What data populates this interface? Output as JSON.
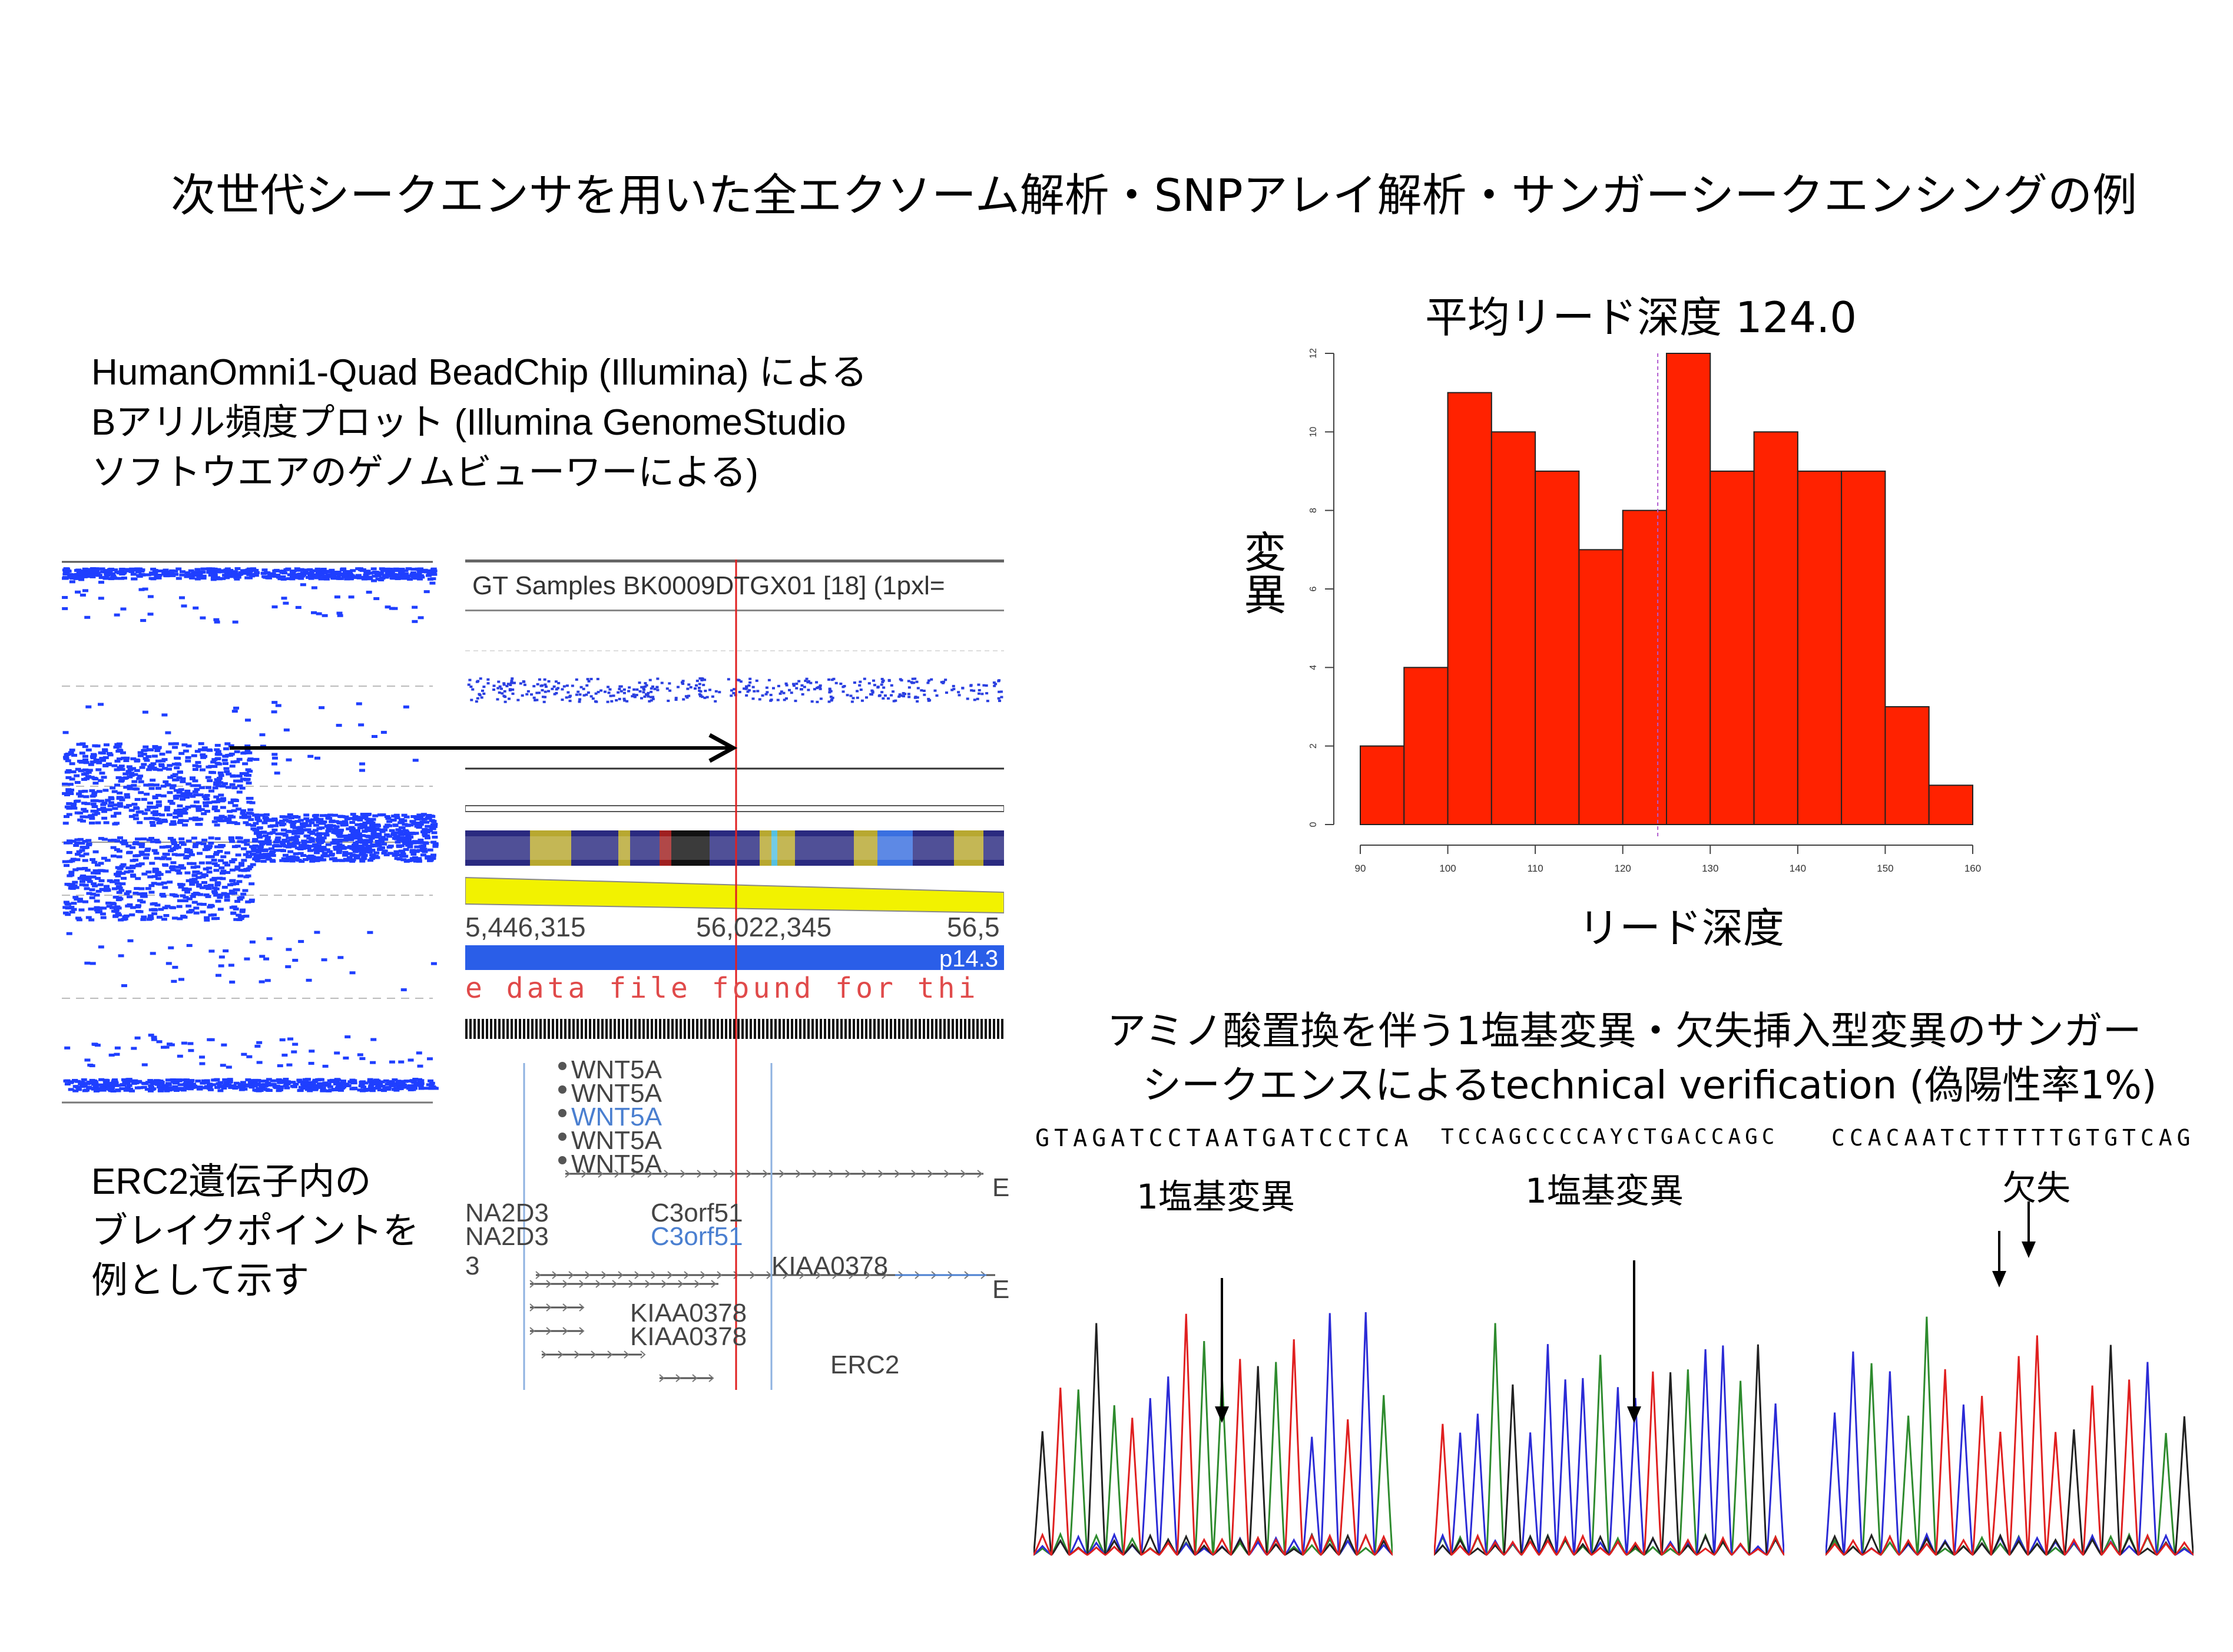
{
  "page_title": "次世代シークエンサを用いた全エクソーム解析・SNPアレイ解析・サンガーシークエンシングの例",
  "left": {
    "caption_lines": [
      "HumanOmni1-Quad BeadChip (Illumina) による",
      "Bアリル頻度プロット (Illumina GenomeStudio",
      "ソフトウエアのゲノムビューワーによる)"
    ],
    "note_lines": [
      "ERC2遺伝子内の",
      "ブレイクポイントを",
      "例として示す"
    ],
    "genome_viewer": {
      "header": "GT Samples BK0009DTGX01 [18] (1pxl=",
      "coord_left": "5,446,315",
      "coord_mid": "56,022,345",
      "coord_right": "56,5",
      "band": "p14.3",
      "no_file_text": "e data file found for thi",
      "genes": [
        {
          "name": "WNT5A",
          "color": "gray"
        },
        {
          "name": "WNT5A",
          "color": "gray"
        },
        {
          "name": "WNT5A",
          "color": "blue"
        },
        {
          "name": "WNT5A",
          "color": "gray"
        },
        {
          "name": "WNT5A",
          "color": "gray"
        },
        {
          "name": "C3orf51",
          "color": "gray"
        },
        {
          "name": "C3orf51",
          "color": "blue"
        },
        {
          "name": "KIAA0378",
          "color": "gray"
        },
        {
          "name": "KIAA0378",
          "color": "gray"
        },
        {
          "name": "KIAA0378",
          "color": "gray"
        },
        {
          "name": "ERC2",
          "color": "gray"
        }
      ],
      "side_labels": [
        "NA2D3",
        "NA2D3",
        "3"
      ],
      "end_letters": [
        "E",
        "E"
      ]
    }
  },
  "chart_data": {
    "type": "bar",
    "title": "平均リード深度 124.0",
    "xlabel": "リード深度",
    "ylabel": "変異",
    "bin_edges": [
      90,
      95,
      100,
      105,
      110,
      115,
      120,
      125,
      130,
      135,
      140,
      145,
      150,
      155,
      160
    ],
    "values": [
      2,
      4,
      11,
      10,
      9,
      7,
      8,
      12,
      9,
      10,
      9,
      9,
      3,
      1
    ],
    "xlim": [
      90,
      160
    ],
    "ylim": [
      0,
      12
    ],
    "x_ticks": [
      90,
      100,
      110,
      120,
      130,
      140,
      150,
      160
    ],
    "y_ticks": [
      0,
      2,
      4,
      6,
      8,
      10,
      12
    ],
    "mean_line": 124.0,
    "bar_color": "#ff2200"
  },
  "sanger": {
    "heading_line1": "アミノ酸置換を伴う1塩基変異・欠失挿入型変異のサンガー",
    "heading_line2": "シークエンスによるtechnical verification (偽陽性率1%)",
    "panels": [
      {
        "sequence": "GTAGATCCTAATGATCCTCA",
        "label": "1塩基変異"
      },
      {
        "sequence": "TCCAGCCCCAYCTGACCAGC",
        "label": "1塩基変異"
      },
      {
        "sequence": "CCACAATCTTTTTGTGTCAG",
        "label": "欠失"
      }
    ],
    "trace_colors": {
      "A": "#2e8b2e",
      "C": "#2b2bd6",
      "G": "#222222",
      "T": "#e02020"
    }
  }
}
